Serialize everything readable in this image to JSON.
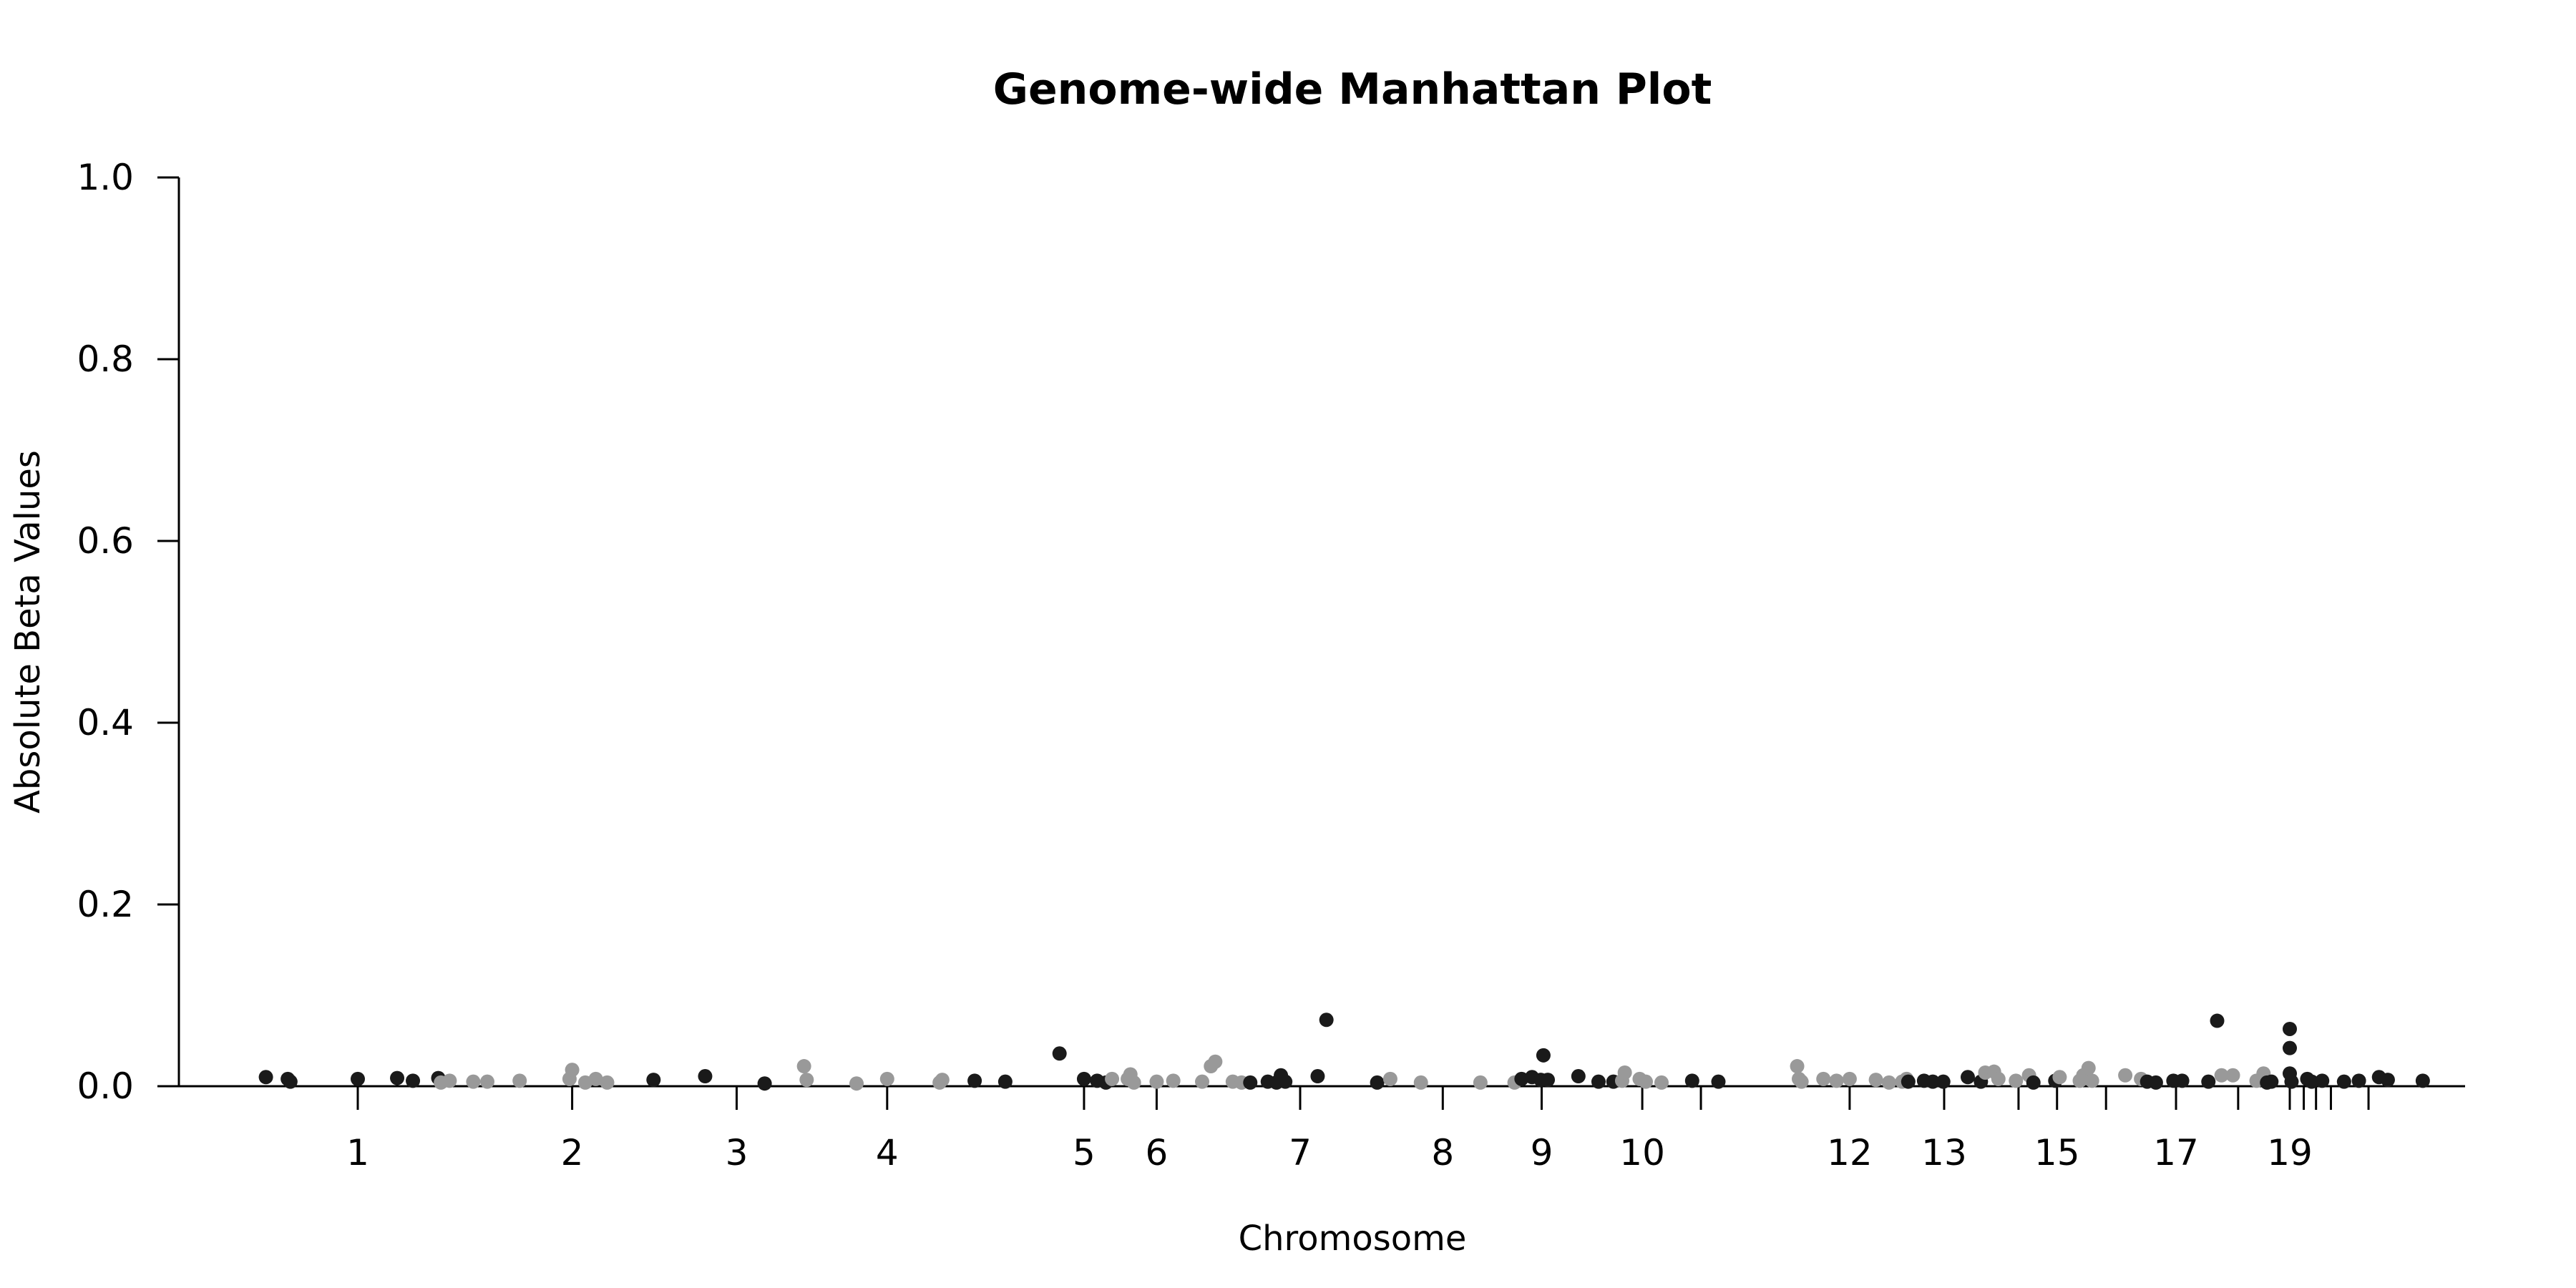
{
  "chart_data": {
    "type": "scatter",
    "title": "Genome-wide Manhattan Plot",
    "xlabel": "Chromosome",
    "ylabel": "Absolute Beta Values",
    "ylim": [
      0,
      1.0
    ],
    "yticks": [
      "0.0",
      "0.2",
      "0.4",
      "0.6",
      "0.8",
      "1.0"
    ],
    "xlim": [
      -1.3,
      26.2
    ],
    "grid": false,
    "legend": "none",
    "colors": {
      "dark": "#1a1a1a",
      "light": "#999999"
    },
    "chromosomes": [
      {
        "label": "1",
        "pos": 0.0,
        "labeled": true
      },
      {
        "label": "2",
        "pos": 2.45,
        "labeled": true
      },
      {
        "label": "3",
        "pos": 4.33,
        "labeled": true
      },
      {
        "label": "4",
        "pos": 6.05,
        "labeled": true
      },
      {
        "label": "5",
        "pos": 8.3,
        "labeled": true
      },
      {
        "label": "6",
        "pos": 9.13,
        "labeled": true
      },
      {
        "label": "7",
        "pos": 10.77,
        "labeled": true
      },
      {
        "label": "8",
        "pos": 12.4,
        "labeled": true
      },
      {
        "label": "9",
        "pos": 13.53,
        "labeled": true
      },
      {
        "label": "10",
        "pos": 14.68,
        "labeled": true
      },
      {
        "label": "",
        "pos": 15.35,
        "labeled": false
      },
      {
        "label": "12",
        "pos": 17.05,
        "labeled": true
      },
      {
        "label": "13",
        "pos": 18.13,
        "labeled": true
      },
      {
        "label": "",
        "pos": 18.98,
        "labeled": false
      },
      {
        "label": "15",
        "pos": 19.42,
        "labeled": true
      },
      {
        "label": "",
        "pos": 19.98,
        "labeled": false
      },
      {
        "label": "17",
        "pos": 20.78,
        "labeled": true
      },
      {
        "label": "",
        "pos": 21.49,
        "labeled": false
      },
      {
        "label": "19",
        "pos": 22.08,
        "labeled": true
      },
      {
        "label": "",
        "pos": 22.24,
        "labeled": false
      },
      {
        "label": "",
        "pos": 22.38,
        "labeled": false
      },
      {
        "label": "",
        "pos": 22.55,
        "labeled": false
      },
      {
        "label": "",
        "pos": 22.98,
        "labeled": false
      }
    ],
    "points": [
      {
        "x": -1.05,
        "y": 0.01,
        "c": "dark"
      },
      {
        "x": -0.8,
        "y": 0.008,
        "c": "dark"
      },
      {
        "x": -0.77,
        "y": 0.005,
        "c": "dark"
      },
      {
        "x": 0.0,
        "y": 0.008,
        "c": "dark"
      },
      {
        "x": 0.45,
        "y": 0.009,
        "c": "dark"
      },
      {
        "x": 0.63,
        "y": 0.006,
        "c": "dark"
      },
      {
        "x": 0.92,
        "y": 0.009,
        "c": "dark"
      },
      {
        "x": 0.95,
        "y": 0.004,
        "c": "light"
      },
      {
        "x": 1.05,
        "y": 0.006,
        "c": "light"
      },
      {
        "x": 1.32,
        "y": 0.005,
        "c": "light"
      },
      {
        "x": 1.48,
        "y": 0.005,
        "c": "light"
      },
      {
        "x": 1.85,
        "y": 0.006,
        "c": "light"
      },
      {
        "x": 2.42,
        "y": 0.008,
        "c": "light"
      },
      {
        "x": 2.45,
        "y": 0.018,
        "c": "light"
      },
      {
        "x": 2.6,
        "y": 0.004,
        "c": "light"
      },
      {
        "x": 2.72,
        "y": 0.008,
        "c": "light"
      },
      {
        "x": 2.85,
        "y": 0.004,
        "c": "light"
      },
      {
        "x": 3.38,
        "y": 0.007,
        "c": "dark"
      },
      {
        "x": 3.97,
        "y": 0.011,
        "c": "dark"
      },
      {
        "x": 4.65,
        "y": 0.003,
        "c": "dark"
      },
      {
        "x": 5.1,
        "y": 0.022,
        "c": "light"
      },
      {
        "x": 5.13,
        "y": 0.007,
        "c": "light"
      },
      {
        "x": 5.7,
        "y": 0.003,
        "c": "light"
      },
      {
        "x": 6.05,
        "y": 0.008,
        "c": "light"
      },
      {
        "x": 6.65,
        "y": 0.004,
        "c": "light"
      },
      {
        "x": 6.68,
        "y": 0.007,
        "c": "light"
      },
      {
        "x": 7.05,
        "y": 0.006,
        "c": "dark"
      },
      {
        "x": 7.4,
        "y": 0.005,
        "c": "dark"
      },
      {
        "x": 8.02,
        "y": 0.036,
        "c": "dark"
      },
      {
        "x": 8.3,
        "y": 0.008,
        "c": "dark"
      },
      {
        "x": 8.45,
        "y": 0.006,
        "c": "dark"
      },
      {
        "x": 8.55,
        "y": 0.004,
        "c": "dark"
      },
      {
        "x": 8.62,
        "y": 0.008,
        "c": "light"
      },
      {
        "x": 8.8,
        "y": 0.008,
        "c": "light"
      },
      {
        "x": 8.83,
        "y": 0.013,
        "c": "light"
      },
      {
        "x": 8.87,
        "y": 0.004,
        "c": "light"
      },
      {
        "x": 9.13,
        "y": 0.005,
        "c": "light"
      },
      {
        "x": 9.32,
        "y": 0.006,
        "c": "light"
      },
      {
        "x": 9.65,
        "y": 0.005,
        "c": "light"
      },
      {
        "x": 9.75,
        "y": 0.022,
        "c": "light"
      },
      {
        "x": 9.8,
        "y": 0.027,
        "c": "light"
      },
      {
        "x": 10.0,
        "y": 0.005,
        "c": "light"
      },
      {
        "x": 10.1,
        "y": 0.004,
        "c": "light"
      },
      {
        "x": 10.2,
        "y": 0.004,
        "c": "dark"
      },
      {
        "x": 10.4,
        "y": 0.005,
        "c": "dark"
      },
      {
        "x": 10.5,
        "y": 0.004,
        "c": "dark"
      },
      {
        "x": 10.55,
        "y": 0.012,
        "c": "dark"
      },
      {
        "x": 10.6,
        "y": 0.005,
        "c": "dark"
      },
      {
        "x": 10.97,
        "y": 0.011,
        "c": "dark"
      },
      {
        "x": 11.07,
        "y": 0.073,
        "c": "dark"
      },
      {
        "x": 11.65,
        "y": 0.004,
        "c": "dark"
      },
      {
        "x": 11.8,
        "y": 0.008,
        "c": "light"
      },
      {
        "x": 12.15,
        "y": 0.004,
        "c": "light"
      },
      {
        "x": 12.83,
        "y": 0.004,
        "c": "light"
      },
      {
        "x": 13.22,
        "y": 0.004,
        "c": "light"
      },
      {
        "x": 13.3,
        "y": 0.008,
        "c": "dark"
      },
      {
        "x": 13.42,
        "y": 0.01,
        "c": "dark"
      },
      {
        "x": 13.52,
        "y": 0.007,
        "c": "dark"
      },
      {
        "x": 13.55,
        "y": 0.034,
        "c": "dark"
      },
      {
        "x": 13.6,
        "y": 0.007,
        "c": "dark"
      },
      {
        "x": 13.95,
        "y": 0.011,
        "c": "dark"
      },
      {
        "x": 14.18,
        "y": 0.005,
        "c": "dark"
      },
      {
        "x": 14.35,
        "y": 0.005,
        "c": "dark"
      },
      {
        "x": 14.45,
        "y": 0.006,
        "c": "light"
      },
      {
        "x": 14.48,
        "y": 0.015,
        "c": "light"
      },
      {
        "x": 14.65,
        "y": 0.008,
        "c": "light"
      },
      {
        "x": 14.72,
        "y": 0.005,
        "c": "light"
      },
      {
        "x": 14.9,
        "y": 0.004,
        "c": "light"
      },
      {
        "x": 15.25,
        "y": 0.006,
        "c": "dark"
      },
      {
        "x": 15.55,
        "y": 0.005,
        "c": "dark"
      },
      {
        "x": 16.45,
        "y": 0.022,
        "c": "light"
      },
      {
        "x": 16.47,
        "y": 0.008,
        "c": "light"
      },
      {
        "x": 16.5,
        "y": 0.005,
        "c": "light"
      },
      {
        "x": 16.75,
        "y": 0.008,
        "c": "light"
      },
      {
        "x": 16.9,
        "y": 0.006,
        "c": "light"
      },
      {
        "x": 17.05,
        "y": 0.008,
        "c": "light"
      },
      {
        "x": 17.35,
        "y": 0.007,
        "c": "light"
      },
      {
        "x": 17.5,
        "y": 0.004,
        "c": "light"
      },
      {
        "x": 17.65,
        "y": 0.005,
        "c": "light"
      },
      {
        "x": 17.7,
        "y": 0.008,
        "c": "light"
      },
      {
        "x": 17.72,
        "y": 0.005,
        "c": "dark"
      },
      {
        "x": 17.9,
        "y": 0.006,
        "c": "dark"
      },
      {
        "x": 18.0,
        "y": 0.005,
        "c": "dark"
      },
      {
        "x": 18.12,
        "y": 0.005,
        "c": "dark"
      },
      {
        "x": 18.4,
        "y": 0.01,
        "c": "dark"
      },
      {
        "x": 18.55,
        "y": 0.005,
        "c": "dark"
      },
      {
        "x": 18.6,
        "y": 0.015,
        "c": "light"
      },
      {
        "x": 18.7,
        "y": 0.016,
        "c": "light"
      },
      {
        "x": 18.75,
        "y": 0.008,
        "c": "light"
      },
      {
        "x": 18.95,
        "y": 0.006,
        "c": "light"
      },
      {
        "x": 19.1,
        "y": 0.012,
        "c": "light"
      },
      {
        "x": 19.15,
        "y": 0.004,
        "c": "dark"
      },
      {
        "x": 19.4,
        "y": 0.006,
        "c": "dark"
      },
      {
        "x": 19.45,
        "y": 0.01,
        "c": "light"
      },
      {
        "x": 19.68,
        "y": 0.006,
        "c": "light"
      },
      {
        "x": 19.72,
        "y": 0.012,
        "c": "light"
      },
      {
        "x": 19.78,
        "y": 0.02,
        "c": "light"
      },
      {
        "x": 19.82,
        "y": 0.006,
        "c": "light"
      },
      {
        "x": 20.2,
        "y": 0.012,
        "c": "light"
      },
      {
        "x": 20.38,
        "y": 0.008,
        "c": "light"
      },
      {
        "x": 20.45,
        "y": 0.005,
        "c": "dark"
      },
      {
        "x": 20.55,
        "y": 0.004,
        "c": "dark"
      },
      {
        "x": 20.75,
        "y": 0.006,
        "c": "dark"
      },
      {
        "x": 20.85,
        "y": 0.006,
        "c": "dark"
      },
      {
        "x": 21.15,
        "y": 0.005,
        "c": "dark"
      },
      {
        "x": 21.25,
        "y": 0.072,
        "c": "dark"
      },
      {
        "x": 21.3,
        "y": 0.012,
        "c": "light"
      },
      {
        "x": 21.43,
        "y": 0.012,
        "c": "light"
      },
      {
        "x": 21.7,
        "y": 0.006,
        "c": "light"
      },
      {
        "x": 21.78,
        "y": 0.014,
        "c": "light"
      },
      {
        "x": 21.82,
        "y": 0.004,
        "c": "dark"
      },
      {
        "x": 21.87,
        "y": 0.005,
        "c": "dark"
      },
      {
        "x": 22.08,
        "y": 0.063,
        "c": "dark"
      },
      {
        "x": 22.08,
        "y": 0.042,
        "c": "dark"
      },
      {
        "x": 22.08,
        "y": 0.014,
        "c": "dark"
      },
      {
        "x": 22.1,
        "y": 0.005,
        "c": "dark"
      },
      {
        "x": 22.28,
        "y": 0.008,
        "c": "dark"
      },
      {
        "x": 22.33,
        "y": 0.005,
        "c": "dark"
      },
      {
        "x": 22.45,
        "y": 0.006,
        "c": "dark"
      },
      {
        "x": 22.7,
        "y": 0.005,
        "c": "dark"
      },
      {
        "x": 22.87,
        "y": 0.006,
        "c": "dark"
      },
      {
        "x": 23.1,
        "y": 0.01,
        "c": "dark"
      },
      {
        "x": 23.2,
        "y": 0.007,
        "c": "dark"
      },
      {
        "x": 23.6,
        "y": 0.006,
        "c": "dark"
      }
    ]
  }
}
